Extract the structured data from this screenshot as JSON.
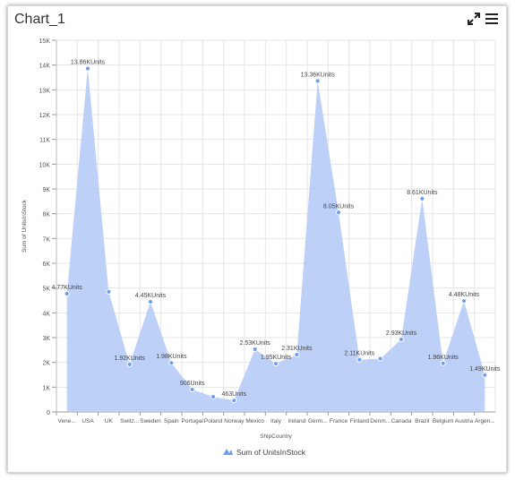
{
  "widget": {
    "title": "Chart_1",
    "icons": [
      "maximize-icon",
      "menu-icon"
    ]
  },
  "chart_data": {
    "type": "area",
    "categories": [
      "Vene...",
      "USA",
      "UK",
      "Switz...",
      "Sweden",
      "Spain",
      "Portugal",
      "Poland",
      "Norway",
      "Mexico",
      "Italy",
      "Ireland",
      "Germ...",
      "France",
      "Finland",
      "Denm...",
      "Canada",
      "Brazil",
      "Belgium",
      "Austria",
      "Argen..."
    ],
    "series": [
      {
        "name": "Sum of UnitsInStock",
        "values": [
          4770,
          13860,
          4850,
          1920,
          4450,
          1980,
          906,
          610,
          463,
          2530,
          1950,
          2310,
          13360,
          8050,
          2110,
          2150,
          2930,
          8610,
          1960,
          4480,
          1490
        ],
        "labels": [
          "4.77KUnits",
          "13.86KUnits",
          "",
          "1.92KUnits",
          "4.45KUnits",
          "1.98KUnits",
          "906Units",
          "",
          "463Units",
          "2.53KUnits",
          "1.95KUnits",
          "2.31KUnits",
          "13.36KUnits",
          "8.05KUnits",
          "2.11KUnits",
          "",
          "2.93KUnits",
          "8.61KUnits",
          "1.96KUnits",
          "4.48KUnits",
          "1.49KUnits"
        ]
      }
    ],
    "xlabel": "ShipCountry",
    "ylabel": "Sum of UnitsInStock",
    "ylim": [
      0,
      15000
    ],
    "yticks": [
      0,
      1000,
      2000,
      3000,
      4000,
      5000,
      6000,
      7000,
      8000,
      9000,
      10000,
      11000,
      12000,
      13000,
      14000,
      15000
    ],
    "ytick_labels": [
      "0",
      "1K",
      "2K",
      "3K",
      "4K",
      "5K",
      "6K",
      "7K",
      "8K",
      "9K",
      "10K",
      "11K",
      "12K",
      "13K",
      "14K",
      "15K"
    ],
    "grid": true,
    "legend_position": "bottom",
    "colors": {
      "fill": "#b9cdf7",
      "marker": "#6f9ff2",
      "grid": "#e6e6e6",
      "text": "#555555"
    }
  }
}
